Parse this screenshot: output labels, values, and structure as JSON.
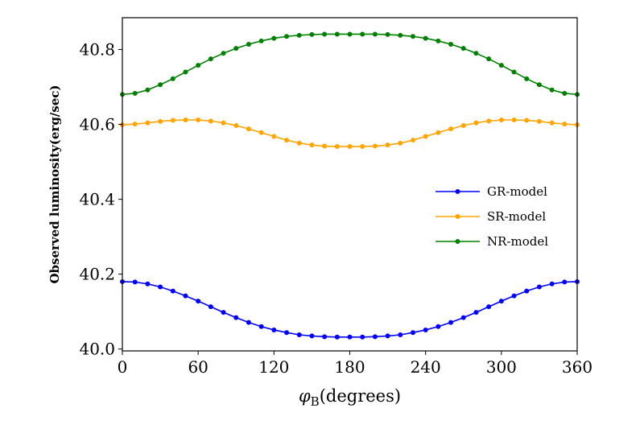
{
  "chart_data": {
    "type": "line",
    "title": "",
    "xlabel": "φB(degrees)",
    "ylabel": "Observed luminosity(erg/sec)",
    "xlim": [
      0,
      360
    ],
    "ylim": [
      39.995,
      40.885
    ],
    "xticks": [
      0,
      60,
      120,
      180,
      240,
      300,
      360
    ],
    "yticks": [
      40.0,
      40.2,
      40.4,
      40.6,
      40.8
    ],
    "ytick_labels": [
      "40.0",
      "40.2",
      "40.4",
      "40.6",
      "40.8"
    ],
    "grid": false,
    "legend_position": "center-right",
    "x": [
      0,
      10,
      20,
      30,
      40,
      50,
      60,
      70,
      80,
      90,
      100,
      110,
      120,
      130,
      140,
      150,
      160,
      170,
      180,
      190,
      200,
      210,
      220,
      230,
      240,
      250,
      260,
      270,
      280,
      290,
      300,
      310,
      320,
      330,
      340,
      350,
      360
    ],
    "series": [
      {
        "name": "GR-model",
        "color": "#0000ff",
        "values": [
          40.18,
          40.179,
          40.174,
          40.166,
          40.155,
          40.142,
          40.128,
          40.113,
          40.098,
          40.084,
          40.071,
          40.06,
          40.051,
          40.044,
          40.038,
          40.035,
          40.033,
          40.032,
          40.032,
          40.032,
          40.033,
          40.035,
          40.038,
          40.044,
          40.051,
          40.06,
          40.071,
          40.084,
          40.098,
          40.113,
          40.128,
          40.142,
          40.155,
          40.166,
          40.174,
          40.179,
          40.18
        ]
      },
      {
        "name": "SR-model",
        "color": "#ffa500",
        "values": [
          40.599,
          40.601,
          40.604,
          40.608,
          40.611,
          40.612,
          40.612,
          40.609,
          40.604,
          40.597,
          40.588,
          40.578,
          40.568,
          40.558,
          40.55,
          40.545,
          40.542,
          40.541,
          40.541,
          40.541,
          40.542,
          40.545,
          40.55,
          40.558,
          40.568,
          40.578,
          40.588,
          40.597,
          40.604,
          40.609,
          40.612,
          40.612,
          40.611,
          40.608,
          40.604,
          40.601,
          40.599
        ]
      },
      {
        "name": "NR-model",
        "color": "#008000",
        "values": [
          40.68,
          40.683,
          40.692,
          40.706,
          40.722,
          40.74,
          40.758,
          40.775,
          40.79,
          40.803,
          40.814,
          40.823,
          40.83,
          40.835,
          40.838,
          40.84,
          40.841,
          40.841,
          40.841,
          40.841,
          40.841,
          40.84,
          40.838,
          40.835,
          40.83,
          40.823,
          40.814,
          40.803,
          40.79,
          40.775,
          40.758,
          40.74,
          40.722,
          40.706,
          40.692,
          40.683,
          40.68
        ]
      }
    ]
  }
}
